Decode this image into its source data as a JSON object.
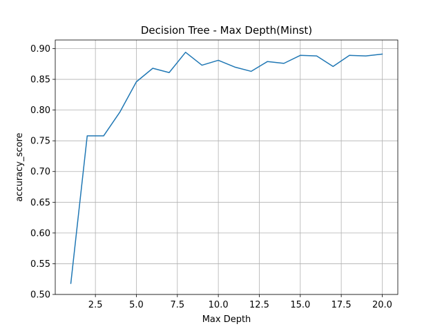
{
  "chart_data": {
    "type": "line",
    "title": "Decision Tree - Max Depth(Minst)",
    "xlabel": "Max Depth",
    "ylabel": "accuracy_score",
    "grid": true,
    "xlim": [
      0.05,
      20.95
    ],
    "ylim": [
      0.5,
      0.914
    ],
    "xticks": [
      2.5,
      5.0,
      7.5,
      10.0,
      12.5,
      15.0,
      17.5,
      20.0
    ],
    "xtick_labels": [
      "2.5",
      "5.0",
      "7.5",
      "10.0",
      "12.5",
      "15.0",
      "17.5",
      "20.0"
    ],
    "yticks": [
      0.5,
      0.55,
      0.6,
      0.65,
      0.7,
      0.75,
      0.8,
      0.85,
      0.9
    ],
    "ytick_labels": [
      "0.50",
      "0.55",
      "0.60",
      "0.65",
      "0.70",
      "0.75",
      "0.80",
      "0.85",
      "0.90"
    ],
    "series": [
      {
        "color": "#1f77b4",
        "x": [
          1,
          2,
          3,
          4,
          5,
          6,
          7,
          8,
          9,
          10,
          11,
          12,
          13,
          14,
          15,
          16,
          17,
          18,
          19,
          20
        ],
        "y": [
          0.518,
          0.758,
          0.758,
          0.797,
          0.846,
          0.868,
          0.861,
          0.894,
          0.873,
          0.881,
          0.87,
          0.863,
          0.879,
          0.876,
          0.889,
          0.888,
          0.871,
          0.889,
          0.888,
          0.891
        ]
      }
    ]
  }
}
